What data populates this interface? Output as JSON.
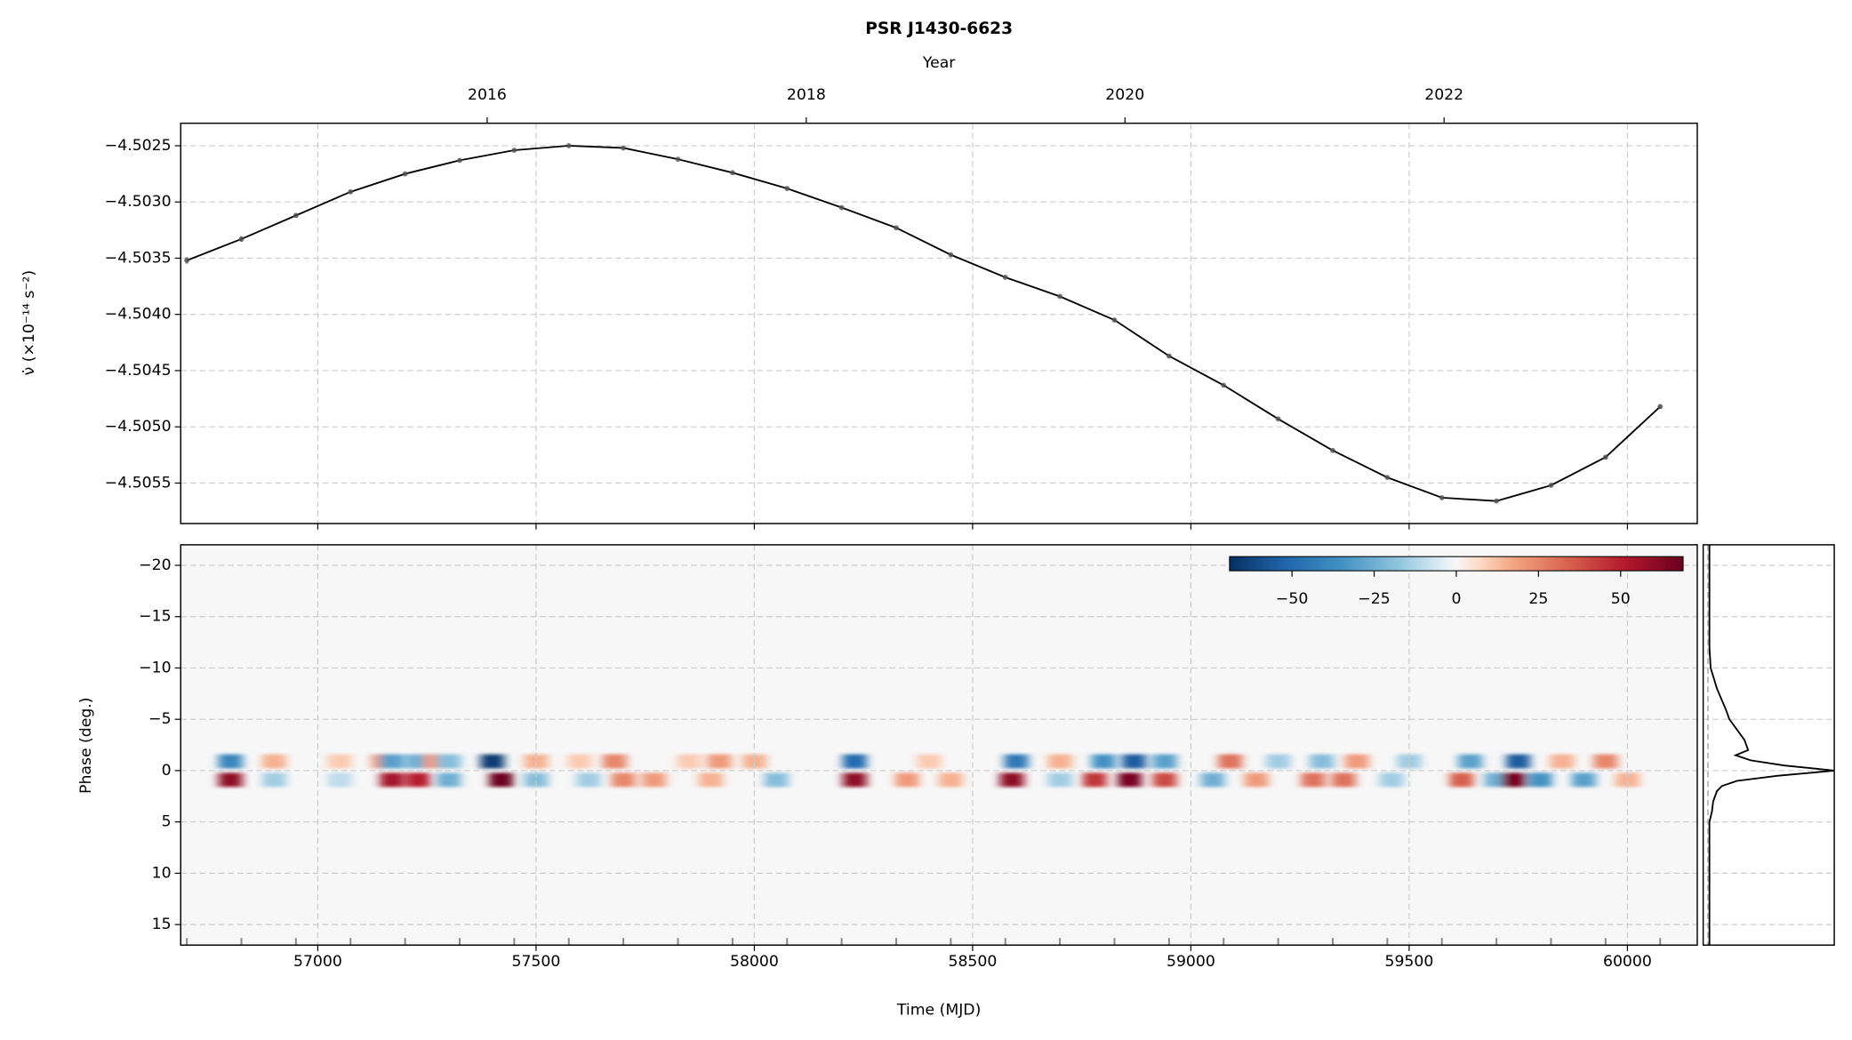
{
  "chart_data": [
    {
      "type": "line",
      "title": "PSR J1430-6623",
      "x2label": "Year",
      "ylabel": "ν̇ (×10⁻¹⁴ s⁻²)",
      "x": [
        56700,
        56825,
        56950,
        57075,
        57200,
        57325,
        57450,
        57575,
        57700,
        57825,
        57950,
        58075,
        58200,
        58325,
        58450,
        58575,
        58700,
        58825,
        58950,
        59075,
        59200,
        59325,
        59450,
        59575,
        59700,
        59825,
        59950,
        60075
      ],
      "series": [
        {
          "color": "#000000",
          "marker_color": "#555555",
          "error_color": "#999999",
          "values": [
            -4.50352,
            -4.50333,
            -4.50312,
            -4.50291,
            -4.50275,
            -4.50263,
            -4.50254,
            -4.5025,
            -4.50252,
            -4.50262,
            -4.50274,
            -4.50288,
            -4.50305,
            -4.50323,
            -4.50347,
            -4.50367,
            -4.50384,
            -4.50405,
            -4.50437,
            -4.50463,
            -4.50493,
            -4.50521,
            -4.50545,
            -4.50563,
            -4.50566,
            -4.50552,
            -4.50527,
            -4.50482
          ],
          "errors": [
            3e-05,
            2.5e-05,
            2e-05,
            1e-05,
            5e-06,
            3e-06,
            3e-06,
            3e-06,
            3e-06,
            3e-06,
            3e-06,
            3e-06,
            3e-06,
            3e-06,
            3e-06,
            3e-06,
            3e-06,
            3e-06,
            3e-06,
            3e-06,
            3e-06,
            3e-06,
            3e-06,
            3e-06,
            4e-06,
            8e-06,
            1.5e-05,
            2e-05
          ]
        }
      ],
      "xlim": [
        56686,
        60160
      ],
      "ylim": [
        -4.50586,
        -4.5023
      ],
      "yticks": [
        {
          "value": -4.5025,
          "label": "−4.5025"
        },
        {
          "value": -4.503,
          "label": "−4.5030"
        },
        {
          "value": -4.5035,
          "label": "−4.5035"
        },
        {
          "value": -4.504,
          "label": "−4.5040"
        },
        {
          "value": -4.5045,
          "label": "−4.5045"
        },
        {
          "value": -4.505,
          "label": "−4.5050"
        },
        {
          "value": -4.5055,
          "label": "−4.5055"
        }
      ],
      "x2ticks": [
        {
          "value": 57388,
          "label": "2016"
        },
        {
          "value": 58119,
          "label": "2018"
        },
        {
          "value": 58849,
          "label": "2020"
        },
        {
          "value": 59580,
          "label": "2022"
        }
      ],
      "grid": true
    },
    {
      "type": "heatmap",
      "xlabel": "Time (MJD)",
      "ylabel": "Phase (deg.)",
      "colormap": "RdBu_r",
      "x": [
        56800,
        56900,
        57050,
        57150,
        57170,
        57230,
        57270,
        57300,
        57400,
        57500,
        57600,
        57680,
        57850,
        57920,
        58000,
        58230,
        58400,
        58600,
        58700,
        58800,
        58870,
        58940,
        59090,
        59200,
        59300,
        59380,
        59500,
        59640,
        59750,
        59850,
        59950,
        56800,
        56900,
        57050,
        57170,
        57230,
        57300,
        57420,
        57500,
        57620,
        57700,
        57770,
        57900,
        58050,
        58230,
        58350,
        58450,
        58590,
        58700,
        58780,
        58860,
        58940,
        59050,
        59150,
        59280,
        59350,
        59460,
        59620,
        59700,
        59740,
        59800,
        59900,
        60000
      ],
      "y": [
        -0.9,
        -0.9,
        -0.9,
        -0.9,
        -0.9,
        -0.9,
        -0.9,
        -0.9,
        -0.9,
        -0.9,
        -0.9,
        -0.9,
        -0.9,
        -0.9,
        -0.9,
        -0.9,
        -0.9,
        -0.9,
        -0.9,
        -0.9,
        -0.9,
        -0.9,
        -0.9,
        -0.9,
        -0.9,
        -0.9,
        -0.9,
        -0.9,
        -0.9,
        -0.9,
        -0.9,
        0.9,
        0.9,
        0.9,
        0.9,
        0.9,
        0.9,
        0.9,
        0.9,
        0.9,
        0.9,
        0.9,
        0.9,
        0.9,
        0.9,
        0.9,
        0.9,
        0.9,
        0.9,
        0.9,
        0.9,
        0.9,
        0.9,
        0.9,
        0.9,
        0.9,
        0.9,
        0.9,
        0.9,
        0.9,
        0.9,
        0.9,
        0.9
      ],
      "values": [
        -40,
        15,
        10,
        20,
        -30,
        -25,
        20,
        -20,
        -65,
        15,
        10,
        25,
        10,
        20,
        15,
        -50,
        10,
        -45,
        15,
        -35,
        -55,
        -30,
        30,
        -15,
        -20,
        20,
        -15,
        -30,
        -55,
        15,
        25,
        60,
        -15,
        -10,
        55,
        50,
        -25,
        68,
        -20,
        -15,
        25,
        20,
        15,
        -20,
        60,
        20,
        15,
        60,
        -15,
        45,
        65,
        40,
        -25,
        20,
        30,
        30,
        -15,
        35,
        -25,
        65,
        -35,
        -30,
        15
      ],
      "xlim": [
        56686,
        60160
      ],
      "ylim": [
        17,
        -22
      ],
      "xticks": [
        57000,
        57500,
        58000,
        58500,
        59000,
        59500,
        60000
      ],
      "yticks": [
        {
          "value": -20,
          "label": "−20"
        },
        {
          "value": -15,
          "label": "−15"
        },
        {
          "value": -10,
          "label": "−10"
        },
        {
          "value": -5,
          "label": "−5"
        },
        0,
        5,
        10,
        15
      ],
      "colorbar": {
        "lim": [
          -69,
          69
        ],
        "ticks": [
          {
            "value": -50,
            "label": "−50"
          },
          {
            "value": -25,
            "label": "−25"
          },
          0,
          25,
          50
        ]
      },
      "grid": true
    },
    {
      "type": "profile",
      "color": "#000000",
      "y": [
        -22,
        -12,
        -10,
        -8,
        -6,
        -5,
        -4,
        -3,
        -2,
        -1.5,
        -1,
        -0.5,
        0,
        0.5,
        1,
        1.5,
        2,
        3,
        4,
        5,
        17
      ],
      "values": [
        0,
        0,
        0.01,
        0.06,
        0.13,
        0.16,
        0.22,
        0.28,
        0.31,
        0.21,
        0.33,
        0.6,
        1.0,
        0.55,
        0.22,
        0.1,
        0.06,
        0.03,
        0.02,
        0,
        0
      ],
      "xlim": [
        -0.05,
        1.0
      ]
    }
  ]
}
